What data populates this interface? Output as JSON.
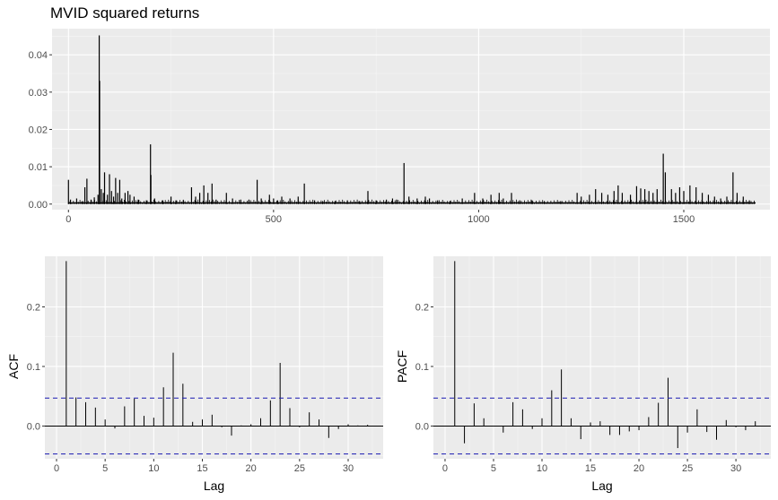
{
  "chart_data": [
    {
      "type": "line",
      "title": "MVID squared returns",
      "xlabel": "",
      "ylabel": "",
      "xlim": [
        -40,
        1710
      ],
      "ylim": [
        -0.0015,
        0.047
      ],
      "x_ticks": [
        0,
        500,
        1000,
        1500
      ],
      "y_ticks": [
        0.0,
        0.01,
        0.02,
        0.03,
        0.04
      ],
      "y_tick_labels": [
        "0.00",
        "0.01",
        "0.02",
        "0.03",
        "0.04"
      ],
      "x_tick_labels": [
        "0",
        "500",
        "1000",
        "1500"
      ],
      "series_color": "#000000",
      "grid": true,
      "spikes": [
        {
          "x": 0,
          "y": 0.0065
        },
        {
          "x": 5,
          "y": 0.0012
        },
        {
          "x": 20,
          "y": 0.0015
        },
        {
          "x": 35,
          "y": 0.0008
        },
        {
          "x": 40,
          "y": 0.0045
        },
        {
          "x": 45,
          "y": 0.0068
        },
        {
          "x": 55,
          "y": 0.0012
        },
        {
          "x": 63,
          "y": 0.0018
        },
        {
          "x": 72,
          "y": 0.0025
        },
        {
          "x": 75,
          "y": 0.0452
        },
        {
          "x": 76,
          "y": 0.033
        },
        {
          "x": 80,
          "y": 0.004
        },
        {
          "x": 85,
          "y": 0.003
        },
        {
          "x": 88,
          "y": 0.0085
        },
        {
          "x": 95,
          "y": 0.0025
        },
        {
          "x": 100,
          "y": 0.008
        },
        {
          "x": 105,
          "y": 0.0035
        },
        {
          "x": 110,
          "y": 0.002
        },
        {
          "x": 115,
          "y": 0.007
        },
        {
          "x": 120,
          "y": 0.003
        },
        {
          "x": 125,
          "y": 0.0065
        },
        {
          "x": 130,
          "y": 0.0015
        },
        {
          "x": 138,
          "y": 0.003
        },
        {
          "x": 145,
          "y": 0.0035
        },
        {
          "x": 150,
          "y": 0.0025
        },
        {
          "x": 160,
          "y": 0.002
        },
        {
          "x": 170,
          "y": 0.0012
        },
        {
          "x": 190,
          "y": 0.001
        },
        {
          "x": 200,
          "y": 0.016
        },
        {
          "x": 201,
          "y": 0.0078
        },
        {
          "x": 210,
          "y": 0.0015
        },
        {
          "x": 230,
          "y": 0.001
        },
        {
          "x": 250,
          "y": 0.002
        },
        {
          "x": 262,
          "y": 0.001
        },
        {
          "x": 280,
          "y": 0.001
        },
        {
          "x": 300,
          "y": 0.0045
        },
        {
          "x": 310,
          "y": 0.002
        },
        {
          "x": 320,
          "y": 0.003
        },
        {
          "x": 330,
          "y": 0.005
        },
        {
          "x": 340,
          "y": 0.003
        },
        {
          "x": 350,
          "y": 0.0055
        },
        {
          "x": 360,
          "y": 0.0012
        },
        {
          "x": 385,
          "y": 0.003
        },
        {
          "x": 400,
          "y": 0.0015
        },
        {
          "x": 420,
          "y": 0.0012
        },
        {
          "x": 440,
          "y": 0.0012
        },
        {
          "x": 460,
          "y": 0.0065
        },
        {
          "x": 470,
          "y": 0.0015
        },
        {
          "x": 490,
          "y": 0.0025
        },
        {
          "x": 500,
          "y": 0.0015
        },
        {
          "x": 510,
          "y": 0.001
        },
        {
          "x": 520,
          "y": 0.002
        },
        {
          "x": 540,
          "y": 0.0015
        },
        {
          "x": 560,
          "y": 0.002
        },
        {
          "x": 575,
          "y": 0.0055
        },
        {
          "x": 600,
          "y": 0.001
        },
        {
          "x": 620,
          "y": 0.0008
        },
        {
          "x": 650,
          "y": 0.0008
        },
        {
          "x": 680,
          "y": 0.001
        },
        {
          "x": 710,
          "y": 0.0008
        },
        {
          "x": 730,
          "y": 0.0035
        },
        {
          "x": 750,
          "y": 0.001
        },
        {
          "x": 775,
          "y": 0.0012
        },
        {
          "x": 790,
          "y": 0.0015
        },
        {
          "x": 800,
          "y": 0.0012
        },
        {
          "x": 818,
          "y": 0.011
        },
        {
          "x": 830,
          "y": 0.002
        },
        {
          "x": 850,
          "y": 0.0015
        },
        {
          "x": 870,
          "y": 0.002
        },
        {
          "x": 880,
          "y": 0.0015
        },
        {
          "x": 900,
          "y": 0.001
        },
        {
          "x": 930,
          "y": 0.0008
        },
        {
          "x": 960,
          "y": 0.0015
        },
        {
          "x": 990,
          "y": 0.003
        },
        {
          "x": 1010,
          "y": 0.0015
        },
        {
          "x": 1030,
          "y": 0.0025
        },
        {
          "x": 1050,
          "y": 0.003
        },
        {
          "x": 1060,
          "y": 0.0015
        },
        {
          "x": 1080,
          "y": 0.003
        },
        {
          "x": 1100,
          "y": 0.001
        },
        {
          "x": 1130,
          "y": 0.001
        },
        {
          "x": 1160,
          "y": 0.0008
        },
        {
          "x": 1200,
          "y": 0.0008
        },
        {
          "x": 1240,
          "y": 0.003
        },
        {
          "x": 1250,
          "y": 0.002
        },
        {
          "x": 1270,
          "y": 0.0025
        },
        {
          "x": 1285,
          "y": 0.004
        },
        {
          "x": 1300,
          "y": 0.003
        },
        {
          "x": 1315,
          "y": 0.0025
        },
        {
          "x": 1330,
          "y": 0.0035
        },
        {
          "x": 1340,
          "y": 0.005
        },
        {
          "x": 1350,
          "y": 0.003
        },
        {
          "x": 1370,
          "y": 0.0025
        },
        {
          "x": 1385,
          "y": 0.0048
        },
        {
          "x": 1395,
          "y": 0.0042
        },
        {
          "x": 1405,
          "y": 0.004
        },
        {
          "x": 1415,
          "y": 0.0035
        },
        {
          "x": 1425,
          "y": 0.003
        },
        {
          "x": 1435,
          "y": 0.004
        },
        {
          "x": 1450,
          "y": 0.0135
        },
        {
          "x": 1455,
          "y": 0.0085
        },
        {
          "x": 1470,
          "y": 0.004
        },
        {
          "x": 1480,
          "y": 0.003
        },
        {
          "x": 1490,
          "y": 0.0045
        },
        {
          "x": 1500,
          "y": 0.0035
        },
        {
          "x": 1515,
          "y": 0.005
        },
        {
          "x": 1530,
          "y": 0.0045
        },
        {
          "x": 1545,
          "y": 0.003
        },
        {
          "x": 1560,
          "y": 0.0025
        },
        {
          "x": 1575,
          "y": 0.002
        },
        {
          "x": 1590,
          "y": 0.0015
        },
        {
          "x": 1605,
          "y": 0.002
        },
        {
          "x": 1620,
          "y": 0.0085
        },
        {
          "x": 1630,
          "y": 0.003
        },
        {
          "x": 1645,
          "y": 0.002
        },
        {
          "x": 1660,
          "y": 0.001
        }
      ]
    },
    {
      "type": "bar",
      "title": "",
      "xlabel": "Lag",
      "ylabel": "ACF",
      "xlim": [
        -1.2,
        33.6
      ],
      "ylim": [
        -0.055,
        0.285
      ],
      "x_ticks": [
        0,
        5,
        10,
        15,
        20,
        25,
        30
      ],
      "x_tick_labels": [
        "0",
        "5",
        "10",
        "15",
        "20",
        "25",
        "30"
      ],
      "y_ticks": [
        0.0,
        0.1,
        0.2
      ],
      "y_tick_labels": [
        "0.0",
        "0.1",
        "0.2"
      ],
      "ci": 0.047,
      "ci_color": "#1a1ab3",
      "lags": [
        1,
        2,
        3,
        4,
        5,
        6,
        7,
        8,
        9,
        10,
        11,
        12,
        13,
        14,
        15,
        16,
        17,
        18,
        19,
        20,
        21,
        22,
        23,
        24,
        25,
        26,
        27,
        28,
        29,
        30,
        31,
        32
      ],
      "values": [
        0.277,
        0.048,
        0.04,
        0.031,
        0.011,
        -0.004,
        0.033,
        0.046,
        0.017,
        0.014,
        0.065,
        0.123,
        0.071,
        0.007,
        0.011,
        0.019,
        -0.002,
        -0.016,
        0.001,
        0.003,
        0.013,
        0.043,
        0.106,
        0.03,
        -0.002,
        0.023,
        0.011,
        -0.02,
        -0.005,
        0.003,
        0.001,
        0.002
      ]
    },
    {
      "type": "bar",
      "title": "",
      "xlabel": "Lag",
      "ylabel": "PACF",
      "xlim": [
        -1.2,
        33.6
      ],
      "ylim": [
        -0.055,
        0.285
      ],
      "x_ticks": [
        0,
        5,
        10,
        15,
        20,
        25,
        30
      ],
      "x_tick_labels": [
        "0",
        "5",
        "10",
        "15",
        "20",
        "25",
        "30"
      ],
      "y_ticks": [
        0.0,
        0.1,
        0.2
      ],
      "y_tick_labels": [
        "0.0",
        "0.1",
        "0.2"
      ],
      "ci": 0.047,
      "ci_color": "#1a1ab3",
      "lags": [
        1,
        2,
        3,
        4,
        5,
        6,
        7,
        8,
        9,
        10,
        11,
        12,
        13,
        14,
        15,
        16,
        17,
        18,
        19,
        20,
        21,
        22,
        23,
        24,
        25,
        26,
        27,
        28,
        29,
        30,
        31,
        32
      ],
      "values": [
        0.277,
        -0.029,
        0.038,
        0.013,
        0.0,
        -0.011,
        0.04,
        0.028,
        -0.005,
        0.013,
        0.06,
        0.095,
        0.013,
        -0.022,
        0.006,
        0.008,
        -0.015,
        -0.015,
        -0.009,
        -0.007,
        0.015,
        0.039,
        0.081,
        -0.037,
        -0.011,
        0.028,
        -0.01,
        -0.023,
        0.01,
        -0.002,
        -0.007,
        0.008
      ]
    }
  ]
}
